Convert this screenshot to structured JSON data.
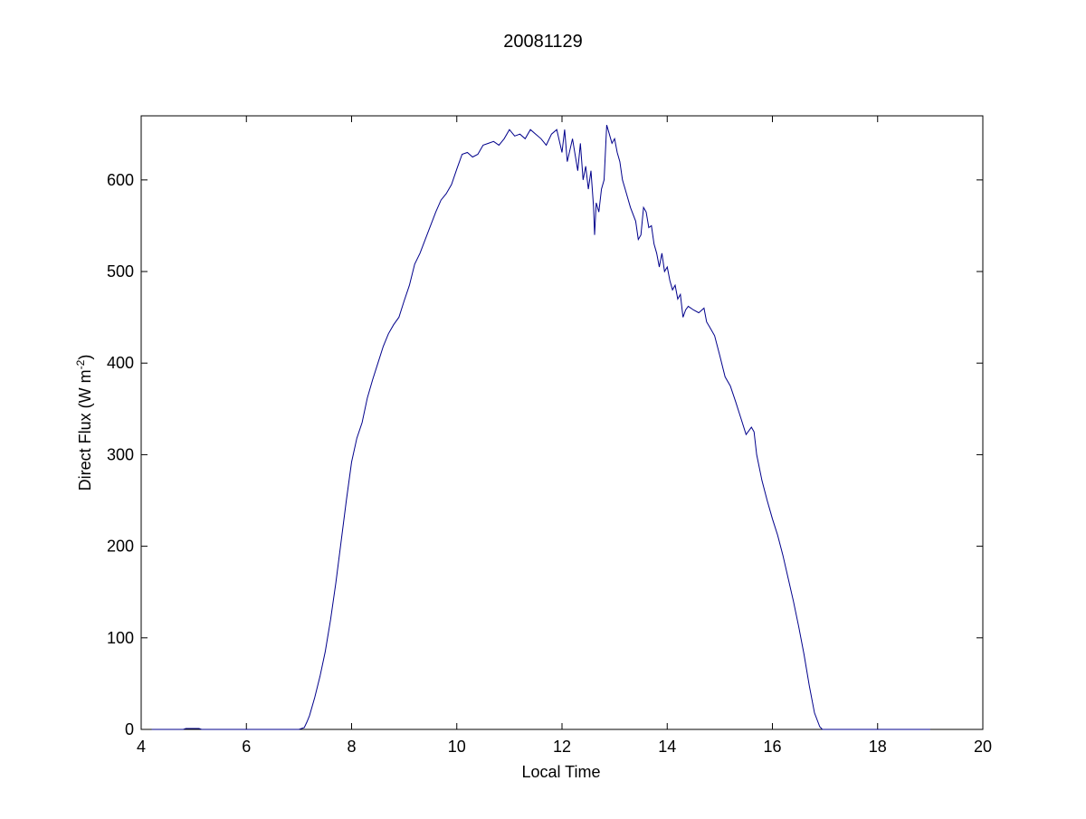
{
  "chart_data": {
    "type": "line",
    "title": "20081129",
    "xlabel": "Local Time",
    "ylabel": {
      "text": "Direct Flux (W m",
      "superscript": "-2",
      "suffix": ")"
    },
    "xlim": [
      4,
      20
    ],
    "ylim": [
      0,
      670
    ],
    "xticks": [
      4,
      6,
      8,
      10,
      12,
      14,
      16,
      18,
      20
    ],
    "yticks": [
      0,
      100,
      200,
      300,
      400,
      500,
      600
    ],
    "grid": false,
    "legend": "none",
    "series": [
      {
        "color": "#00008B",
        "points": [
          [
            4.2,
            0
          ],
          [
            4.8,
            0
          ],
          [
            4.85,
            1
          ],
          [
            5.1,
            1
          ],
          [
            5.15,
            0
          ],
          [
            7.0,
            0
          ],
          [
            7.1,
            2
          ],
          [
            7.15,
            8
          ],
          [
            7.2,
            15
          ],
          [
            7.3,
            35
          ],
          [
            7.4,
            58
          ],
          [
            7.5,
            85
          ],
          [
            7.6,
            120
          ],
          [
            7.7,
            160
          ],
          [
            7.8,
            205
          ],
          [
            7.9,
            250
          ],
          [
            8.0,
            292
          ],
          [
            8.1,
            318
          ],
          [
            8.2,
            335
          ],
          [
            8.3,
            362
          ],
          [
            8.4,
            382
          ],
          [
            8.5,
            400
          ],
          [
            8.6,
            418
          ],
          [
            8.7,
            432
          ],
          [
            8.8,
            442
          ],
          [
            8.9,
            450
          ],
          [
            9.0,
            468
          ],
          [
            9.1,
            485
          ],
          [
            9.2,
            508
          ],
          [
            9.3,
            520
          ],
          [
            9.4,
            535
          ],
          [
            9.5,
            550
          ],
          [
            9.6,
            565
          ],
          [
            9.7,
            578
          ],
          [
            9.8,
            585
          ],
          [
            9.9,
            595
          ],
          [
            10.0,
            612
          ],
          [
            10.1,
            628
          ],
          [
            10.2,
            630
          ],
          [
            10.3,
            625
          ],
          [
            10.4,
            628
          ],
          [
            10.5,
            638
          ],
          [
            10.6,
            640
          ],
          [
            10.7,
            642
          ],
          [
            10.8,
            638
          ],
          [
            10.9,
            645
          ],
          [
            11.0,
            655
          ],
          [
            11.1,
            648
          ],
          [
            11.2,
            650
          ],
          [
            11.3,
            645
          ],
          [
            11.4,
            655
          ],
          [
            11.5,
            650
          ],
          [
            11.6,
            645
          ],
          [
            11.7,
            638
          ],
          [
            11.8,
            650
          ],
          [
            11.9,
            655
          ],
          [
            12.0,
            630
          ],
          [
            12.05,
            655
          ],
          [
            12.1,
            620
          ],
          [
            12.2,
            645
          ],
          [
            12.3,
            610
          ],
          [
            12.35,
            640
          ],
          [
            12.4,
            600
          ],
          [
            12.45,
            615
          ],
          [
            12.5,
            590
          ],
          [
            12.55,
            610
          ],
          [
            12.6,
            570
          ],
          [
            12.62,
            540
          ],
          [
            12.65,
            575
          ],
          [
            12.7,
            565
          ],
          [
            12.75,
            590
          ],
          [
            12.8,
            600
          ],
          [
            12.85,
            660
          ],
          [
            12.9,
            650
          ],
          [
            12.95,
            640
          ],
          [
            13.0,
            645
          ],
          [
            13.05,
            630
          ],
          [
            13.1,
            620
          ],
          [
            13.15,
            600
          ],
          [
            13.2,
            590
          ],
          [
            13.3,
            570
          ],
          [
            13.4,
            555
          ],
          [
            13.45,
            535
          ],
          [
            13.5,
            540
          ],
          [
            13.55,
            570
          ],
          [
            13.6,
            565
          ],
          [
            13.65,
            548
          ],
          [
            13.7,
            550
          ],
          [
            13.75,
            530
          ],
          [
            13.8,
            520
          ],
          [
            13.85,
            505
          ],
          [
            13.9,
            520
          ],
          [
            13.95,
            500
          ],
          [
            14.0,
            505
          ],
          [
            14.05,
            490
          ],
          [
            14.1,
            480
          ],
          [
            14.15,
            485
          ],
          [
            14.2,
            470
          ],
          [
            14.25,
            475
          ],
          [
            14.3,
            450
          ],
          [
            14.35,
            458
          ],
          [
            14.4,
            462
          ],
          [
            14.5,
            458
          ],
          [
            14.6,
            455
          ],
          [
            14.7,
            460
          ],
          [
            14.75,
            445
          ],
          [
            14.8,
            440
          ],
          [
            14.9,
            430
          ],
          [
            15.0,
            408
          ],
          [
            15.1,
            385
          ],
          [
            15.2,
            375
          ],
          [
            15.3,
            358
          ],
          [
            15.4,
            340
          ],
          [
            15.5,
            322
          ],
          [
            15.6,
            330
          ],
          [
            15.65,
            325
          ],
          [
            15.7,
            300
          ],
          [
            15.8,
            272
          ],
          [
            15.9,
            250
          ],
          [
            16.0,
            230
          ],
          [
            16.1,
            212
          ],
          [
            16.2,
            190
          ],
          [
            16.3,
            165
          ],
          [
            16.4,
            140
          ],
          [
            16.5,
            112
          ],
          [
            16.6,
            82
          ],
          [
            16.7,
            48
          ],
          [
            16.8,
            18
          ],
          [
            16.9,
            3
          ],
          [
            16.95,
            0
          ],
          [
            19.0,
            0
          ]
        ]
      }
    ]
  }
}
